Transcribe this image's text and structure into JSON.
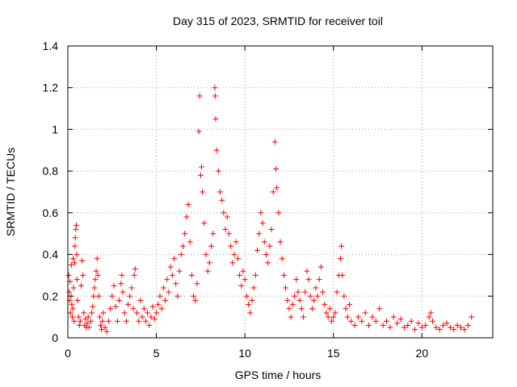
{
  "chart_data": {
    "type": "scatter",
    "title": "Day 315 of 2023, SRMTID for receiver toil",
    "xlabel": "GPS time / hours",
    "ylabel": "SRMTID / TECUs",
    "xlim": [
      0,
      24
    ],
    "ylim": [
      0,
      1.4
    ],
    "x_ticks": [
      0,
      5,
      10,
      15,
      20
    ],
    "y_ticks": [
      0,
      0.2,
      0.4,
      0.6,
      0.8,
      1,
      1.2,
      1.4
    ],
    "x_tick_labels": [
      "0",
      "5",
      "10",
      "15",
      "20"
    ],
    "y_tick_labels": [
      "0",
      "0.2",
      "0.4",
      "0.6",
      "0.8",
      "1",
      "1.2",
      "1.4"
    ],
    "grid": true,
    "marker": "+",
    "marker_color": "#ff0000",
    "series": [
      {
        "name": "SRMTID",
        "points": [
          [
            0.05,
            0.3
          ],
          [
            0.08,
            0.22
          ],
          [
            0.1,
            0.18
          ],
          [
            0.12,
            0.27
          ],
          [
            0.15,
            0.12
          ],
          [
            0.18,
            0.2
          ],
          [
            0.2,
            0.35
          ],
          [
            0.22,
            0.16
          ],
          [
            0.25,
            0.1
          ],
          [
            0.28,
            0.14
          ],
          [
            0.3,
            0.38
          ],
          [
            0.32,
            0.24
          ],
          [
            0.35,
            0.08
          ],
          [
            0.38,
            0.36
          ],
          [
            0.4,
            0.44
          ],
          [
            0.42,
            0.48
          ],
          [
            0.45,
            0.52
          ],
          [
            0.48,
            0.54
          ],
          [
            0.5,
            0.4
          ],
          [
            0.52,
            0.28
          ],
          [
            0.55,
            0.18
          ],
          [
            0.6,
            0.1
          ],
          [
            0.65,
            0.06
          ],
          [
            0.7,
            0.08
          ],
          [
            0.75,
            0.25
          ],
          [
            0.8,
            0.37
          ],
          [
            0.85,
            0.3
          ],
          [
            0.9,
            0.12
          ],
          [
            0.95,
            0.06
          ],
          [
            1.0,
            0.09
          ],
          [
            1.05,
            0.05
          ],
          [
            1.1,
            0.07
          ],
          [
            1.15,
            0.1
          ],
          [
            1.2,
            0.05
          ],
          [
            1.3,
            0.08
          ],
          [
            1.35,
            0.12
          ],
          [
            1.4,
            0.15
          ],
          [
            1.45,
            0.2
          ],
          [
            1.5,
            0.24
          ],
          [
            1.55,
            0.28
          ],
          [
            1.6,
            0.32
          ],
          [
            1.65,
            0.38
          ],
          [
            1.7,
            0.3
          ],
          [
            1.75,
            0.2
          ],
          [
            1.8,
            0.1
          ],
          [
            1.85,
            0.06
          ],
          [
            1.9,
            0.04
          ],
          [
            1.95,
            0.08
          ],
          [
            2.0,
            0.12
          ],
          [
            2.1,
            0.05
          ],
          [
            2.2,
            0.03
          ],
          [
            2.3,
            0.08
          ],
          [
            2.4,
            0.14
          ],
          [
            2.5,
            0.2
          ],
          [
            2.6,
            0.25
          ],
          [
            2.7,
            0.15
          ],
          [
            2.8,
            0.08
          ],
          [
            2.9,
            0.18
          ],
          [
            3.0,
            0.26
          ],
          [
            3.05,
            0.3
          ],
          [
            3.1,
            0.22
          ],
          [
            3.2,
            0.12
          ],
          [
            3.3,
            0.08
          ],
          [
            3.4,
            0.16
          ],
          [
            3.5,
            0.2
          ],
          [
            3.6,
            0.24
          ],
          [
            3.7,
            0.14
          ],
          [
            3.75,
            0.3
          ],
          [
            3.8,
            0.33
          ],
          [
            3.9,
            0.12
          ],
          [
            4.0,
            0.08
          ],
          [
            4.1,
            0.18
          ],
          [
            4.2,
            0.1
          ],
          [
            4.3,
            0.14
          ],
          [
            4.4,
            0.08
          ],
          [
            4.5,
            0.12
          ],
          [
            4.6,
            0.06
          ],
          [
            4.7,
            0.1
          ],
          [
            4.8,
            0.15
          ],
          [
            4.9,
            0.09
          ],
          [
            5.0,
            0.12
          ],
          [
            5.1,
            0.16
          ],
          [
            5.2,
            0.2
          ],
          [
            5.3,
            0.14
          ],
          [
            5.4,
            0.24
          ],
          [
            5.5,
            0.18
          ],
          [
            5.6,
            0.28
          ],
          [
            5.7,
            0.22
          ],
          [
            5.8,
            0.34
          ],
          [
            5.9,
            0.3
          ],
          [
            6.0,
            0.38
          ],
          [
            6.1,
            0.26
          ],
          [
            6.2,
            0.2
          ],
          [
            6.3,
            0.32
          ],
          [
            6.4,
            0.4
          ],
          [
            6.5,
            0.44
          ],
          [
            6.6,
            0.5
          ],
          [
            6.7,
            0.58
          ],
          [
            6.8,
            0.64
          ],
          [
            6.9,
            0.46
          ],
          [
            7.0,
            0.3
          ],
          [
            7.1,
            0.2
          ],
          [
            7.2,
            0.18
          ],
          [
            7.3,
            0.26
          ],
          [
            7.4,
            0.99
          ],
          [
            7.45,
            1.16
          ],
          [
            7.5,
            0.78
          ],
          [
            7.55,
            0.82
          ],
          [
            7.6,
            0.7
          ],
          [
            7.7,
            0.55
          ],
          [
            7.8,
            0.4
          ],
          [
            7.9,
            0.32
          ],
          [
            8.0,
            0.36
          ],
          [
            8.1,
            0.44
          ],
          [
            8.2,
            0.5
          ],
          [
            8.3,
            1.2
          ],
          [
            8.32,
            1.16
          ],
          [
            8.35,
            1.05
          ],
          [
            8.4,
            0.9
          ],
          [
            8.5,
            0.8
          ],
          [
            8.6,
            0.7
          ],
          [
            8.7,
            0.66
          ],
          [
            8.8,
            0.6
          ],
          [
            8.9,
            0.52
          ],
          [
            9.0,
            0.58
          ],
          [
            9.1,
            0.5
          ],
          [
            9.2,
            0.44
          ],
          [
            9.3,
            0.36
          ],
          [
            9.4,
            0.4
          ],
          [
            9.5,
            0.46
          ],
          [
            9.6,
            0.38
          ],
          [
            9.7,
            0.3
          ],
          [
            9.8,
            0.25
          ],
          [
            9.9,
            0.32
          ],
          [
            10.0,
            0.28
          ],
          [
            10.1,
            0.2
          ],
          [
            10.2,
            0.16
          ],
          [
            10.3,
            0.12
          ],
          [
            10.4,
            0.18
          ],
          [
            10.5,
            0.24
          ],
          [
            10.6,
            0.3
          ],
          [
            10.7,
            0.42
          ],
          [
            10.8,
            0.5
          ],
          [
            10.9,
            0.6
          ],
          [
            11.0,
            0.55
          ],
          [
            11.1,
            0.46
          ],
          [
            11.2,
            0.4
          ],
          [
            11.3,
            0.36
          ],
          [
            11.4,
            0.44
          ],
          [
            11.5,
            0.52
          ],
          [
            11.6,
            0.7
          ],
          [
            11.7,
            0.94
          ],
          [
            11.75,
            0.81
          ],
          [
            11.8,
            0.72
          ],
          [
            11.9,
            0.6
          ],
          [
            12.0,
            0.46
          ],
          [
            12.1,
            0.38
          ],
          [
            12.2,
            0.3
          ],
          [
            12.3,
            0.24
          ],
          [
            12.4,
            0.18
          ],
          [
            12.5,
            0.14
          ],
          [
            12.6,
            0.1
          ],
          [
            12.7,
            0.16
          ],
          [
            12.8,
            0.2
          ],
          [
            12.9,
            0.28
          ],
          [
            13.0,
            0.22
          ],
          [
            13.1,
            0.18
          ],
          [
            13.2,
            0.14
          ],
          [
            13.3,
            0.1
          ],
          [
            13.4,
            0.22
          ],
          [
            13.5,
            0.32
          ],
          [
            13.6,
            0.28
          ],
          [
            13.7,
            0.2
          ],
          [
            13.8,
            0.14
          ],
          [
            13.9,
            0.18
          ],
          [
            14.0,
            0.24
          ],
          [
            14.1,
            0.2
          ],
          [
            14.2,
            0.28
          ],
          [
            14.3,
            0.34
          ],
          [
            14.4,
            0.22
          ],
          [
            14.5,
            0.16
          ],
          [
            14.6,
            0.12
          ],
          [
            14.7,
            0.1
          ],
          [
            14.8,
            0.14
          ],
          [
            14.9,
            0.08
          ],
          [
            15.0,
            0.1
          ],
          [
            15.1,
            0.12
          ],
          [
            15.2,
            0.22
          ],
          [
            15.3,
            0.3
          ],
          [
            15.4,
            0.38
          ],
          [
            15.45,
            0.44
          ],
          [
            15.5,
            0.3
          ],
          [
            15.6,
            0.2
          ],
          [
            15.7,
            0.14
          ],
          [
            15.8,
            0.1
          ],
          [
            15.9,
            0.16
          ],
          [
            16.0,
            0.08
          ],
          [
            16.2,
            0.06
          ],
          [
            16.4,
            0.1
          ],
          [
            16.6,
            0.08
          ],
          [
            16.8,
            0.12
          ],
          [
            17.0,
            0.06
          ],
          [
            17.2,
            0.1
          ],
          [
            17.4,
            0.08
          ],
          [
            17.6,
            0.14
          ],
          [
            17.8,
            0.06
          ],
          [
            18.0,
            0.08
          ],
          [
            18.2,
            0.05
          ],
          [
            18.4,
            0.1
          ],
          [
            18.6,
            0.07
          ],
          [
            18.8,
            0.09
          ],
          [
            19.0,
            0.05
          ],
          [
            19.2,
            0.06
          ],
          [
            19.4,
            0.08
          ],
          [
            19.6,
            0.04
          ],
          [
            19.8,
            0.07
          ],
          [
            20.0,
            0.05
          ],
          [
            20.2,
            0.06
          ],
          [
            20.4,
            0.1
          ],
          [
            20.5,
            0.12
          ],
          [
            20.6,
            0.08
          ],
          [
            20.8,
            0.05
          ],
          [
            21.0,
            0.04
          ],
          [
            21.2,
            0.06
          ],
          [
            21.4,
            0.07
          ],
          [
            21.6,
            0.05
          ],
          [
            21.8,
            0.04
          ],
          [
            22.0,
            0.06
          ],
          [
            22.2,
            0.05
          ],
          [
            22.4,
            0.04
          ],
          [
            22.6,
            0.06
          ],
          [
            22.8,
            0.1
          ]
        ]
      }
    ]
  }
}
